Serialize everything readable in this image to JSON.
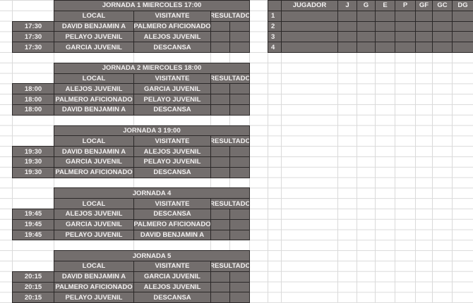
{
  "fixture_headers": {
    "local": "LOCAL",
    "visitante": "VISITANTE",
    "resultado": "RESULTADO"
  },
  "jornadas": [
    {
      "title": "JORNADA 1 MIERCOLES 17:00",
      "matches": [
        {
          "time": "17:30",
          "local": "DAVID BENJAMIN A",
          "visitante": "PALMERO AFICIONADO"
        },
        {
          "time": "17:30",
          "local": "PELAYO JUVENIL",
          "visitante": "ALEJOS JUVENIL"
        },
        {
          "time": "17:30",
          "local": "GARCIA JUVENIL",
          "visitante": "DESCANSA"
        }
      ]
    },
    {
      "title": "JORNADA 2 MIERCOLES 18:00",
      "matches": [
        {
          "time": "18:00",
          "local": "ALEJOS JUVENIL",
          "visitante": "GARCIA JUVENIL"
        },
        {
          "time": "18:00",
          "local": "PALMERO AFICIONADO",
          "visitante": "PELAYO JUVENIL"
        },
        {
          "time": "18:00",
          "local": "DAVID BENJAMIN A",
          "visitante": "DESCANSA"
        }
      ]
    },
    {
      "title": "JORNADA 3 19:00",
      "matches": [
        {
          "time": "19:30",
          "local": "DAVID BENJAMIN A",
          "visitante": "ALEJOS JUVENIL"
        },
        {
          "time": "19:30",
          "local": "GARCIA JUVENIL",
          "visitante": "PELAYO JUVENIL"
        },
        {
          "time": "19:30",
          "local": "PALMERO AFICIONADO",
          "visitante": "DESCANSA"
        }
      ]
    },
    {
      "title": "JORNADA 4",
      "matches": [
        {
          "time": "19:45",
          "local": "ALEJOS JUVENIL",
          "visitante": "DESCANSA"
        },
        {
          "time": "19:45",
          "local": "GARCIA JUVENIL",
          "visitante": "PALMERO AFICIONADO"
        },
        {
          "time": "19:45",
          "local": "PELAYO JUVENIL",
          "visitante": "DAVID BENJAMIN A"
        }
      ]
    },
    {
      "title": "JORNADA 5",
      "matches": [
        {
          "time": "20:15",
          "local": "DAVID BENJAMIN A",
          "visitante": "GARCIA JUVENIL"
        },
        {
          "time": "20:15",
          "local": "PALMERO AFICIONADO",
          "visitante": "ALEJOS JUVENIL"
        },
        {
          "time": "20:15",
          "local": "PELAYO JUVENIL",
          "visitante": "DESCANSA"
        }
      ]
    }
  ],
  "standings": {
    "headers": [
      "JUGADOR",
      "J",
      "G",
      "E",
      "P",
      "GF",
      "GC",
      "DG"
    ],
    "rows": [
      "1",
      "2",
      "3",
      "4"
    ]
  },
  "colors": {
    "cell_fill": "#736e6d",
    "cell_border": "#2b2828",
    "gridline": "#dadada",
    "text": "#f2f0f0"
  }
}
